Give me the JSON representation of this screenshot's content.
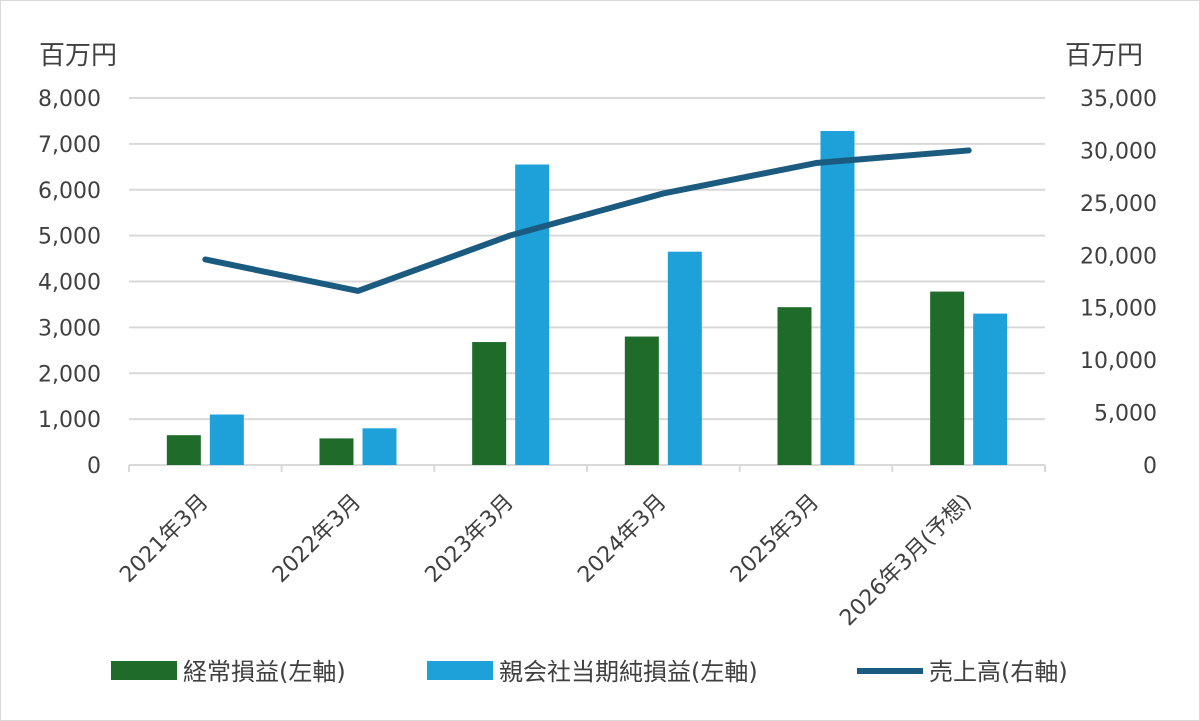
{
  "chart_data": {
    "type": "bar",
    "categories": [
      "2021年3月",
      "2022年3月",
      "2023年3月",
      "2024年3月",
      "2025年3月",
      "2026年3月(予想)"
    ],
    "y_left": {
      "unit": "百万円",
      "ylim": [
        0,
        8000
      ],
      "ticks": [
        "0",
        "1,000",
        "2,000",
        "3,000",
        "4,000",
        "5,000",
        "6,000",
        "7,000",
        "8,000"
      ]
    },
    "y_right": {
      "unit": "百万円",
      "ylim": [
        0,
        35000
      ],
      "ticks": [
        "0",
        "5,000",
        "10,000",
        "15,000",
        "20,000",
        "25,000",
        "30,000",
        "35,000"
      ]
    },
    "grid": true,
    "legend_position": "bottom",
    "series": [
      {
        "name": "経常損益(左軸)",
        "type": "bar",
        "axis": "left",
        "color": "#1e6b2a",
        "values": [
          650,
          580,
          2680,
          2800,
          3440,
          3780
        ]
      },
      {
        "name": "親会社当期純損益(左軸)",
        "type": "bar",
        "axis": "left",
        "color": "#1ea0d8",
        "values": [
          1100,
          800,
          6550,
          4650,
          7280,
          3300
        ]
      },
      {
        "name": "売上高(右軸)",
        "type": "line",
        "axis": "right",
        "color": "#1c5b80",
        "values": [
          19600,
          16600,
          21900,
          25900,
          28800,
          30000
        ]
      }
    ]
  }
}
